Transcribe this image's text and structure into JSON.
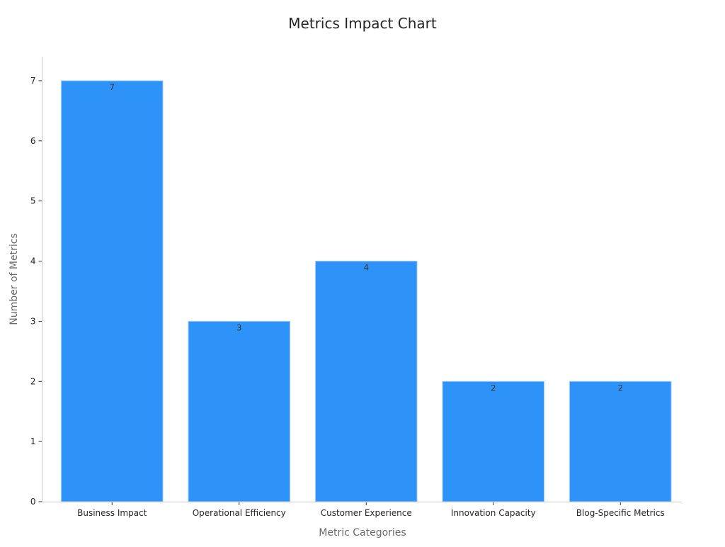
{
  "chart_data": {
    "type": "bar",
    "title": "Metrics Impact Chart",
    "xlabel": "Metric Categories",
    "ylabel": "Number of Metrics",
    "categories": [
      "Business Impact",
      "Operational Efficiency",
      "Customer Experience",
      "Innovation Capacity",
      "Blog-Specific Metrics"
    ],
    "values": [
      7,
      3,
      4,
      2,
      2
    ],
    "ylim": [
      0,
      7.4
    ],
    "yticks": [
      0,
      1,
      2,
      3,
      4,
      5,
      6,
      7
    ],
    "data_labels": true,
    "grid": false,
    "legend": "none",
    "bar_color": "#2e93f9",
    "bar_edge_color": "#a9cdf5"
  }
}
